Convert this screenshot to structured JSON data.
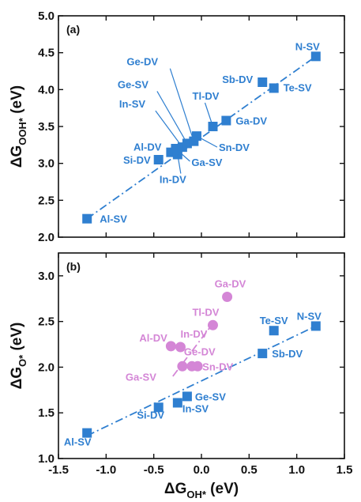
{
  "colors": {
    "blue": "#2f7fd0",
    "pink": "#d486d6",
    "axis": "#111111",
    "background": "#ffffff"
  },
  "chart_data": [
    {
      "type": "scatter",
      "panel_label": "(a)",
      "xlabel": "",
      "ylabel": {
        "main": "ΔG",
        "sub": "OOH*",
        "unit": " (eV)"
      },
      "xlim": [
        -1.5,
        1.5
      ],
      "ylim": [
        2.0,
        5.0
      ],
      "x_ticks": [
        "-1.5",
        "-1.0",
        "-0.5",
        "0.0",
        "0.5",
        "1.0",
        "1.5"
      ],
      "y_ticks": [
        "2.0",
        "2.5",
        "3.0",
        "3.5",
        "4.0",
        "4.5",
        "5.0"
      ],
      "x_tick_labels_shown": false,
      "grid": false,
      "trendline": {
        "style": "dash-dot",
        "color": "#2f7fd0",
        "x": [
          -1.2,
          1.2
        ],
        "y": [
          2.25,
          4.45
        ]
      },
      "series": [
        {
          "marker": "square",
          "color": "#2f7fd0",
          "points": [
            {
              "label": "Al-SV",
              "x": -1.2,
              "y": 2.25
            },
            {
              "label": "Si-DV",
              "x": -0.45,
              "y": 3.05
            },
            {
              "label": "Al-DV",
              "x": -0.32,
              "y": 3.15
            },
            {
              "label": "In-DV",
              "x": -0.25,
              "y": 3.12
            },
            {
              "label": "Ga-SV",
              "x": -0.27,
              "y": 3.2
            },
            {
              "label": "In-SV",
              "x": -0.2,
              "y": 3.22
            },
            {
              "label": "Ge-SV",
              "x": -0.15,
              "y": 3.27
            },
            {
              "label": "Ge-DV",
              "x": -0.08,
              "y": 3.3
            },
            {
              "label": "Sn-DV",
              "x": -0.05,
              "y": 3.37
            },
            {
              "label": "Tl-DV",
              "x": 0.12,
              "y": 3.5
            },
            {
              "label": "Ga-DV",
              "x": 0.26,
              "y": 3.58
            },
            {
              "label": "Sb-DV",
              "x": 0.64,
              "y": 4.1
            },
            {
              "label": "Te-SV",
              "x": 0.76,
              "y": 4.02
            },
            {
              "label": "N-SV",
              "x": 1.2,
              "y": 4.45
            }
          ]
        }
      ]
    },
    {
      "type": "scatter",
      "panel_label": "(b)",
      "xlabel": {
        "main": "ΔG",
        "sub": "OH*",
        "unit": " (eV)"
      },
      "ylabel": {
        "main": "ΔG",
        "sub": "O*",
        "unit": " (eV)"
      },
      "xlim": [
        -1.5,
        1.5
      ],
      "ylim": [
        1.0,
        3.25
      ],
      "x_ticks": [
        "-1.5",
        "-1.0",
        "-0.5",
        "0.0",
        "0.5",
        "1.0",
        "1.5"
      ],
      "y_ticks": [
        "1.0",
        "1.5",
        "2.0",
        "2.5",
        "3.0"
      ],
      "grid": false,
      "trendlines": [
        {
          "style": "dash-dot",
          "color": "#2f7fd0",
          "x": [
            -1.2,
            1.2
          ],
          "y": [
            1.25,
            2.45
          ]
        },
        {
          "style": "dash-dot",
          "color": "#d486d6",
          "x": [
            -0.3,
            0.1
          ],
          "y": [
            1.9,
            2.45
          ]
        }
      ],
      "series": [
        {
          "marker": "square",
          "color": "#2f7fd0",
          "points": [
            {
              "label": "Al-SV",
              "x": -1.2,
              "y": 1.28
            },
            {
              "label": "Si-DV",
              "x": -0.45,
              "y": 1.56
            },
            {
              "label": "In-SV",
              "x": -0.25,
              "y": 1.61
            },
            {
              "label": "Ge-SV",
              "x": -0.15,
              "y": 1.68
            },
            {
              "label": "Sb-DV",
              "x": 0.64,
              "y": 2.15
            },
            {
              "label": "Te-SV",
              "x": 0.76,
              "y": 2.4
            },
            {
              "label": "N-SV",
              "x": 1.2,
              "y": 2.45
            }
          ]
        },
        {
          "marker": "circle",
          "color": "#d486d6",
          "points": [
            {
              "label": "Al-DV",
              "x": -0.32,
              "y": 2.23
            },
            {
              "label": "In-DV",
              "x": -0.22,
              "y": 2.22
            },
            {
              "label": "Ga-SV",
              "x": -0.2,
              "y": 2.01
            },
            {
              "label": "Ge-DV",
              "x": -0.1,
              "y": 2.01
            },
            {
              "label": "Sn-DV",
              "x": -0.04,
              "y": 2.01
            },
            {
              "label": "Tl-DV",
              "x": 0.12,
              "y": 2.46
            },
            {
              "label": "Ga-DV",
              "x": 0.27,
              "y": 2.77
            }
          ]
        }
      ]
    }
  ]
}
